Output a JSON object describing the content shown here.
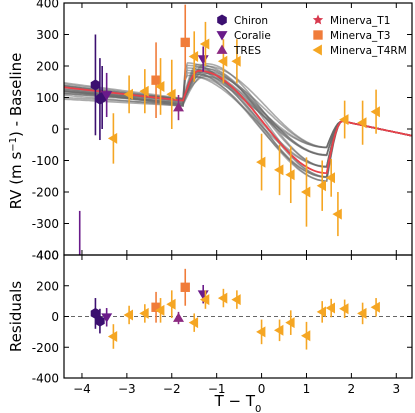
{
  "chart_data": {
    "type": "scatter",
    "xlabel": "T − T",
    "xlabel_sub": "0",
    "x_ticks": [
      -4,
      -3,
      -2,
      -1,
      0,
      1,
      2,
      3
    ],
    "xlim": [
      -4.4,
      3.35
    ],
    "legend_placement": "top-right",
    "grid": false,
    "colors": {
      "Chiron": "#3b0f70",
      "Coralie": "#6a1b8a",
      "TRES": "#8c2981",
      "Minerva_T1": "#d83a4f",
      "Minerva_T3": "#f07c3a",
      "Minerva_T4RM": "#f5a623",
      "best_fit": "#e8414a",
      "samples": "#666666"
    },
    "legend": [
      {
        "name": "Chiron",
        "marker": "hexagon"
      },
      {
        "name": "Coralie",
        "marker": "triangle-down"
      },
      {
        "name": "TRES",
        "marker": "triangle-up"
      },
      {
        "name": "Minerva_T1",
        "marker": "star"
      },
      {
        "name": "Minerva_T3",
        "marker": "square"
      },
      {
        "name": "Minerva_T4RM",
        "marker": "triangle-left"
      }
    ],
    "panels": [
      {
        "id": "rv",
        "ylabel": "RV (m s",
        "ylabel_sup": "−1",
        "ylabel_tail": ") - Baseline",
        "ylim": [
          -400,
          400
        ],
        "y_ticks": [
          -400,
          -300,
          -200,
          -100,
          0,
          100,
          200,
          300,
          400
        ],
        "series": [
          {
            "name": "Chiron",
            "points": [
              [
                -3.7,
                140,
                160
              ],
              [
                -3.6,
                95,
                130
              ],
              [
                -3.55,
                100,
                100
              ]
            ]
          },
          {
            "name": "Coralie",
            "points": [
              [
                -3.45,
                108,
                70
              ],
              [
                -1.3,
                222,
                40
              ]
            ]
          },
          {
            "name": "TRES",
            "points": [
              [
                -1.85,
                68,
                40
              ]
            ]
          },
          {
            "name": "Minerva_T3",
            "points": [
              [
                -2.35,
                155,
                120
              ],
              [
                -1.7,
                275,
                120
              ]
            ]
          },
          {
            "name": "Minerva_T4RM",
            "points": [
              [
                -3.3,
                -30,
                80
              ],
              [
                -2.95,
                110,
                60
              ],
              [
                -2.6,
                120,
                70
              ],
              [
                -2.25,
                135,
                90
              ],
              [
                -2.0,
                110,
                110
              ],
              [
                -1.5,
                230,
                80
              ],
              [
                -1.25,
                270,
                70
              ],
              [
                -0.85,
                215,
                70
              ],
              [
                -0.55,
                215,
                70
              ],
              [
                0.0,
                -105,
                90
              ],
              [
                0.4,
                -130,
                80
              ],
              [
                0.65,
                -145,
                90
              ],
              [
                1.0,
                -200,
                110
              ],
              [
                1.35,
                -180,
                80
              ],
              [
                1.55,
                -155,
                60
              ],
              [
                1.7,
                -270,
                70
              ],
              [
                1.85,
                30,
                60
              ],
              [
                2.25,
                20,
                70
              ],
              [
                2.55,
                55,
                70
              ]
            ]
          }
        ],
        "outlier_errorbar": {
          "name": "Coralie",
          "x": -4.05,
          "from": -260,
          "to": -400
        }
      },
      {
        "id": "residuals",
        "ylabel": "Residuals",
        "ylim": [
          -400,
          400
        ],
        "y_ticks": [
          -400,
          -200,
          0,
          200,
          400
        ],
        "zero_line": true,
        "series": [
          {
            "name": "Chiron",
            "points": [
              [
                -3.7,
                20,
                100
              ],
              [
                -3.6,
                -30,
                80
              ]
            ]
          },
          {
            "name": "Coralie",
            "points": [
              [
                -3.45,
                -5,
                60
              ],
              [
                -1.3,
                145,
                60
              ]
            ]
          },
          {
            "name": "TRES",
            "points": [
              [
                -1.85,
                -10,
                40
              ]
            ]
          },
          {
            "name": "Minerva_T3",
            "points": [
              [
                -2.35,
                60,
                100
              ],
              [
                -1.7,
                190,
                120
              ]
            ]
          },
          {
            "name": "Minerva_T4RM",
            "points": [
              [
                -3.3,
                -130,
                80
              ],
              [
                -2.95,
                10,
                60
              ],
              [
                -2.6,
                20,
                60
              ],
              [
                -2.25,
                40,
                80
              ],
              [
                -2.0,
                80,
                90
              ],
              [
                -1.5,
                -40,
                60
              ],
              [
                -1.25,
                110,
                60
              ],
              [
                -0.85,
                120,
                60
              ],
              [
                -0.55,
                110,
                60
              ],
              [
                0.0,
                -100,
                80
              ],
              [
                0.4,
                -90,
                70
              ],
              [
                0.65,
                -40,
                80
              ],
              [
                1.0,
                -125,
                90
              ],
              [
                1.35,
                30,
                70
              ],
              [
                1.55,
                55,
                60
              ],
              [
                1.85,
                50,
                60
              ],
              [
                2.25,
                20,
                70
              ],
              [
                2.55,
                60,
                60
              ]
            ]
          }
        ]
      }
    ]
  }
}
